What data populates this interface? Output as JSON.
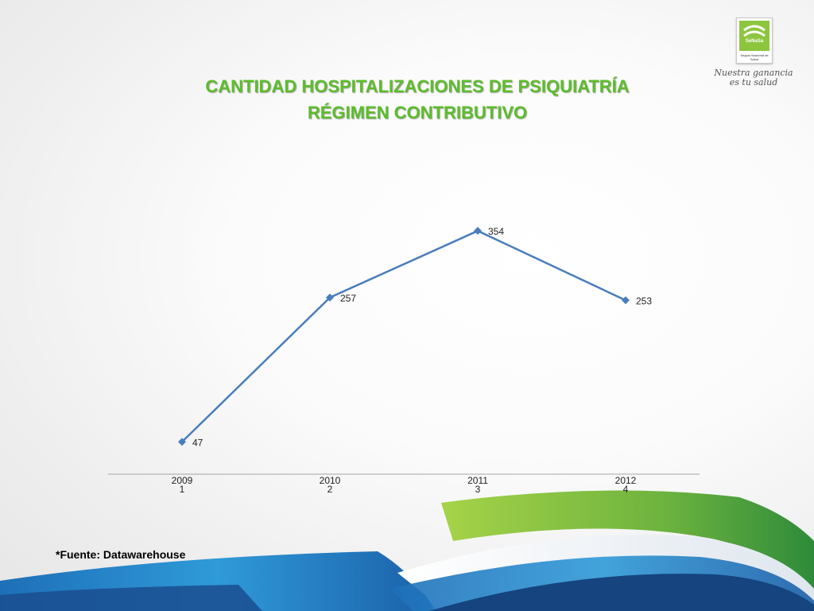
{
  "slide": {
    "title_line1": "CANTIDAD HOSPITALIZACIONES DE PSIQUIATRÍA",
    "title_line2": "RÉGIMEN CONTRIBUTIVO",
    "source": "*Fuente: Datawarehouse",
    "logo_brand": "SeNaSa",
    "logo_sub": "Seguro Nacional de Salud",
    "slogan_line1": "Nuestra ganancia",
    "slogan_line2": "es tu salud"
  },
  "colors": {
    "title": "#5cbd2a",
    "series": "#4a7ebb",
    "axis": "#a6a6a6",
    "swoosh_green": "#8dc63f",
    "swoosh_blue": "#2b8fd0",
    "swoosh_dark": "#1d4f8c"
  },
  "chart_data": {
    "type": "line",
    "categories": [
      "2009",
      "2010",
      "2011",
      "2012"
    ],
    "category_index": [
      "1",
      "2",
      "3",
      "4"
    ],
    "series": [
      {
        "values": [
          47,
          257,
          354,
          253
        ],
        "marker": "diamond"
      }
    ],
    "data_labels": [
      "47",
      "257",
      "354",
      "253"
    ],
    "ylim": [
      0,
      360
    ],
    "grid": false,
    "legend": "none",
    "xlabel": "",
    "ylabel": ""
  }
}
